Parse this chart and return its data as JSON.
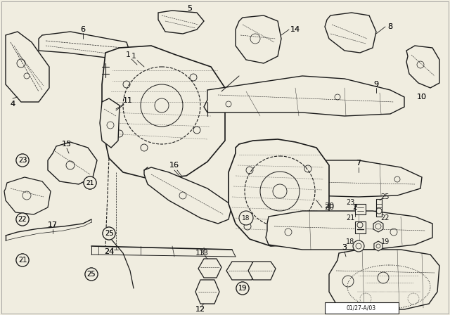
{
  "bg_color": "#f5f5f0",
  "line_color": "#1a1a1a",
  "fig_width": 6.4,
  "fig_height": 4.48,
  "dpi": 100,
  "bottom_label": "01/27-A/03"
}
